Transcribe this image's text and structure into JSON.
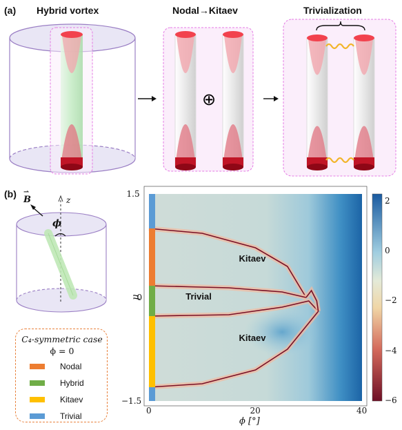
{
  "panel_a": {
    "label": "(a)",
    "titles": [
      "Hybrid vortex",
      "Nodal→Kitaev",
      "Trivialization"
    ],
    "plus_symbol": "⊕"
  },
  "panel_b": {
    "label": "(b)",
    "axis_z": "z",
    "vector_B": "B",
    "angle_phi": "ϕ"
  },
  "legend": {
    "title_line1": "C₄-symmetric case",
    "title_line2": "ϕ = 0",
    "items": [
      {
        "label": "Nodal",
        "color": "#ed7d31"
      },
      {
        "label": "Hybrid",
        "color": "#70ad47"
      },
      {
        "label": "Kitaev",
        "color": "#ffc000"
      },
      {
        "label": "Trivial",
        "color": "#5b9bd5"
      }
    ]
  },
  "chart_data": {
    "type": "heatmap",
    "xlabel": "ϕ [°]",
    "ylabel": "μ",
    "xlim": [
      0,
      40
    ],
    "ylim": [
      -1.5,
      1.5
    ],
    "x_ticks": [
      "0",
      "20",
      "40"
    ],
    "y_ticks": [
      "1.5",
      "0",
      "−1.5"
    ],
    "colorbar_ticks": [
      "2",
      "0",
      "−2",
      "−4",
      "−6"
    ],
    "colorbar_range": [
      -6,
      2.3
    ],
    "region_labels": [
      {
        "text": "Kitaev",
        "x": 20,
        "y": 0.55
      },
      {
        "text": "Trivial",
        "x": 10,
        "y": 0.0
      },
      {
        "text": "Kitaev",
        "x": 20,
        "y": -0.6
      }
    ],
    "phase_strip_phi0": [
      {
        "phase": "Trivial",
        "mu_from": 1.0,
        "mu_to": 1.5,
        "color": "#5b9bd5"
      },
      {
        "phase": "Nodal",
        "mu_from": 0.17,
        "mu_to": 1.0,
        "color": "#ed7d31"
      },
      {
        "phase": "Hybrid",
        "mu_from": -0.27,
        "mu_to": 0.17,
        "color": "#70ad47"
      },
      {
        "phase": "Kitaev",
        "mu_from": -1.3,
        "mu_to": -0.27,
        "color": "#ffc000"
      },
      {
        "phase": "Trivial",
        "mu_from": -1.5,
        "mu_to": -1.3,
        "color": "#5b9bd5"
      }
    ],
    "boundaries": [
      {
        "name": "upper",
        "points": [
          [
            0,
            1.0
          ],
          [
            10,
            0.93
          ],
          [
            20,
            0.72
          ],
          [
            26,
            0.45
          ],
          [
            29.5,
            0.0
          ]
        ]
      },
      {
        "name": "middle-upper",
        "points": [
          [
            0,
            0.17
          ],
          [
            15,
            0.14
          ],
          [
            25,
            0.08
          ],
          [
            29.5,
            0.0
          ]
        ]
      },
      {
        "name": "middle-lower",
        "points": [
          [
            0,
            -0.27
          ],
          [
            15,
            -0.25
          ],
          [
            25,
            -0.14
          ],
          [
            30,
            -0.05
          ],
          [
            31.8,
            -0.2
          ]
        ]
      },
      {
        "name": "lower",
        "points": [
          [
            0,
            -1.3
          ],
          [
            10,
            -1.25
          ],
          [
            20,
            -1.05
          ],
          [
            26,
            -0.75
          ],
          [
            31.8,
            -0.2
          ]
        ]
      },
      {
        "name": "cross",
        "points": [
          [
            29.5,
            0.0
          ],
          [
            30.5,
            0.1
          ],
          [
            31.5,
            -0.05
          ],
          [
            31.8,
            -0.2
          ]
        ]
      }
    ]
  }
}
